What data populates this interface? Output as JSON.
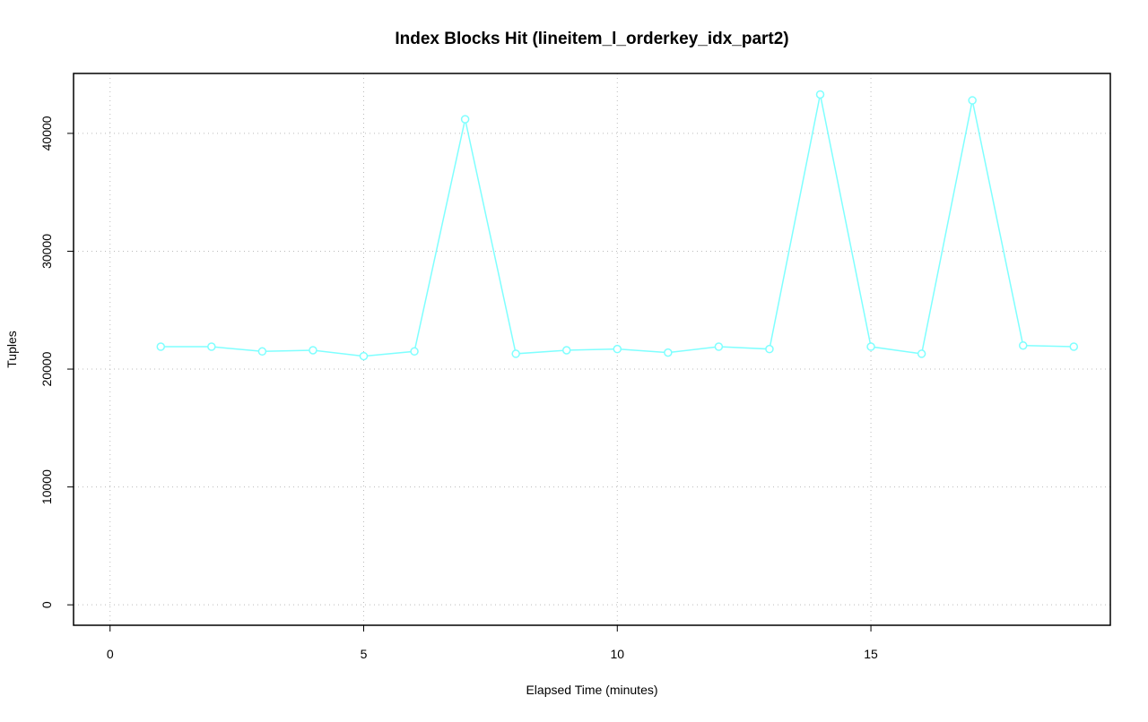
{
  "chart_data": {
    "type": "line",
    "title": "Index Blocks Hit (lineitem_l_orderkey_idx_part2)",
    "x_label": "Elapsed Time (minutes)",
    "y_label": "Tuples",
    "x": [
      1,
      2,
      3,
      4,
      5,
      6,
      7,
      8,
      9,
      10,
      11,
      12,
      13,
      14,
      15,
      16,
      17,
      18,
      19
    ],
    "series": [
      {
        "name": "lineitem_l_orderkey_idx_part2",
        "color": "#7fffff",
        "values": [
          21900,
          21900,
          21500,
          21600,
          21100,
          21500,
          41200,
          21300,
          21600,
          21700,
          21400,
          21900,
          21700,
          43300,
          21900,
          21300,
          42800,
          22000,
          21900
        ]
      }
    ],
    "xlim": [
      -0.72,
      19.72
    ],
    "xticks": [
      0,
      5,
      10,
      15
    ],
    "ylim": [
      -1734,
      45084
    ],
    "yticks": [
      0,
      10000,
      20000,
      30000,
      40000
    ],
    "grid": true
  }
}
